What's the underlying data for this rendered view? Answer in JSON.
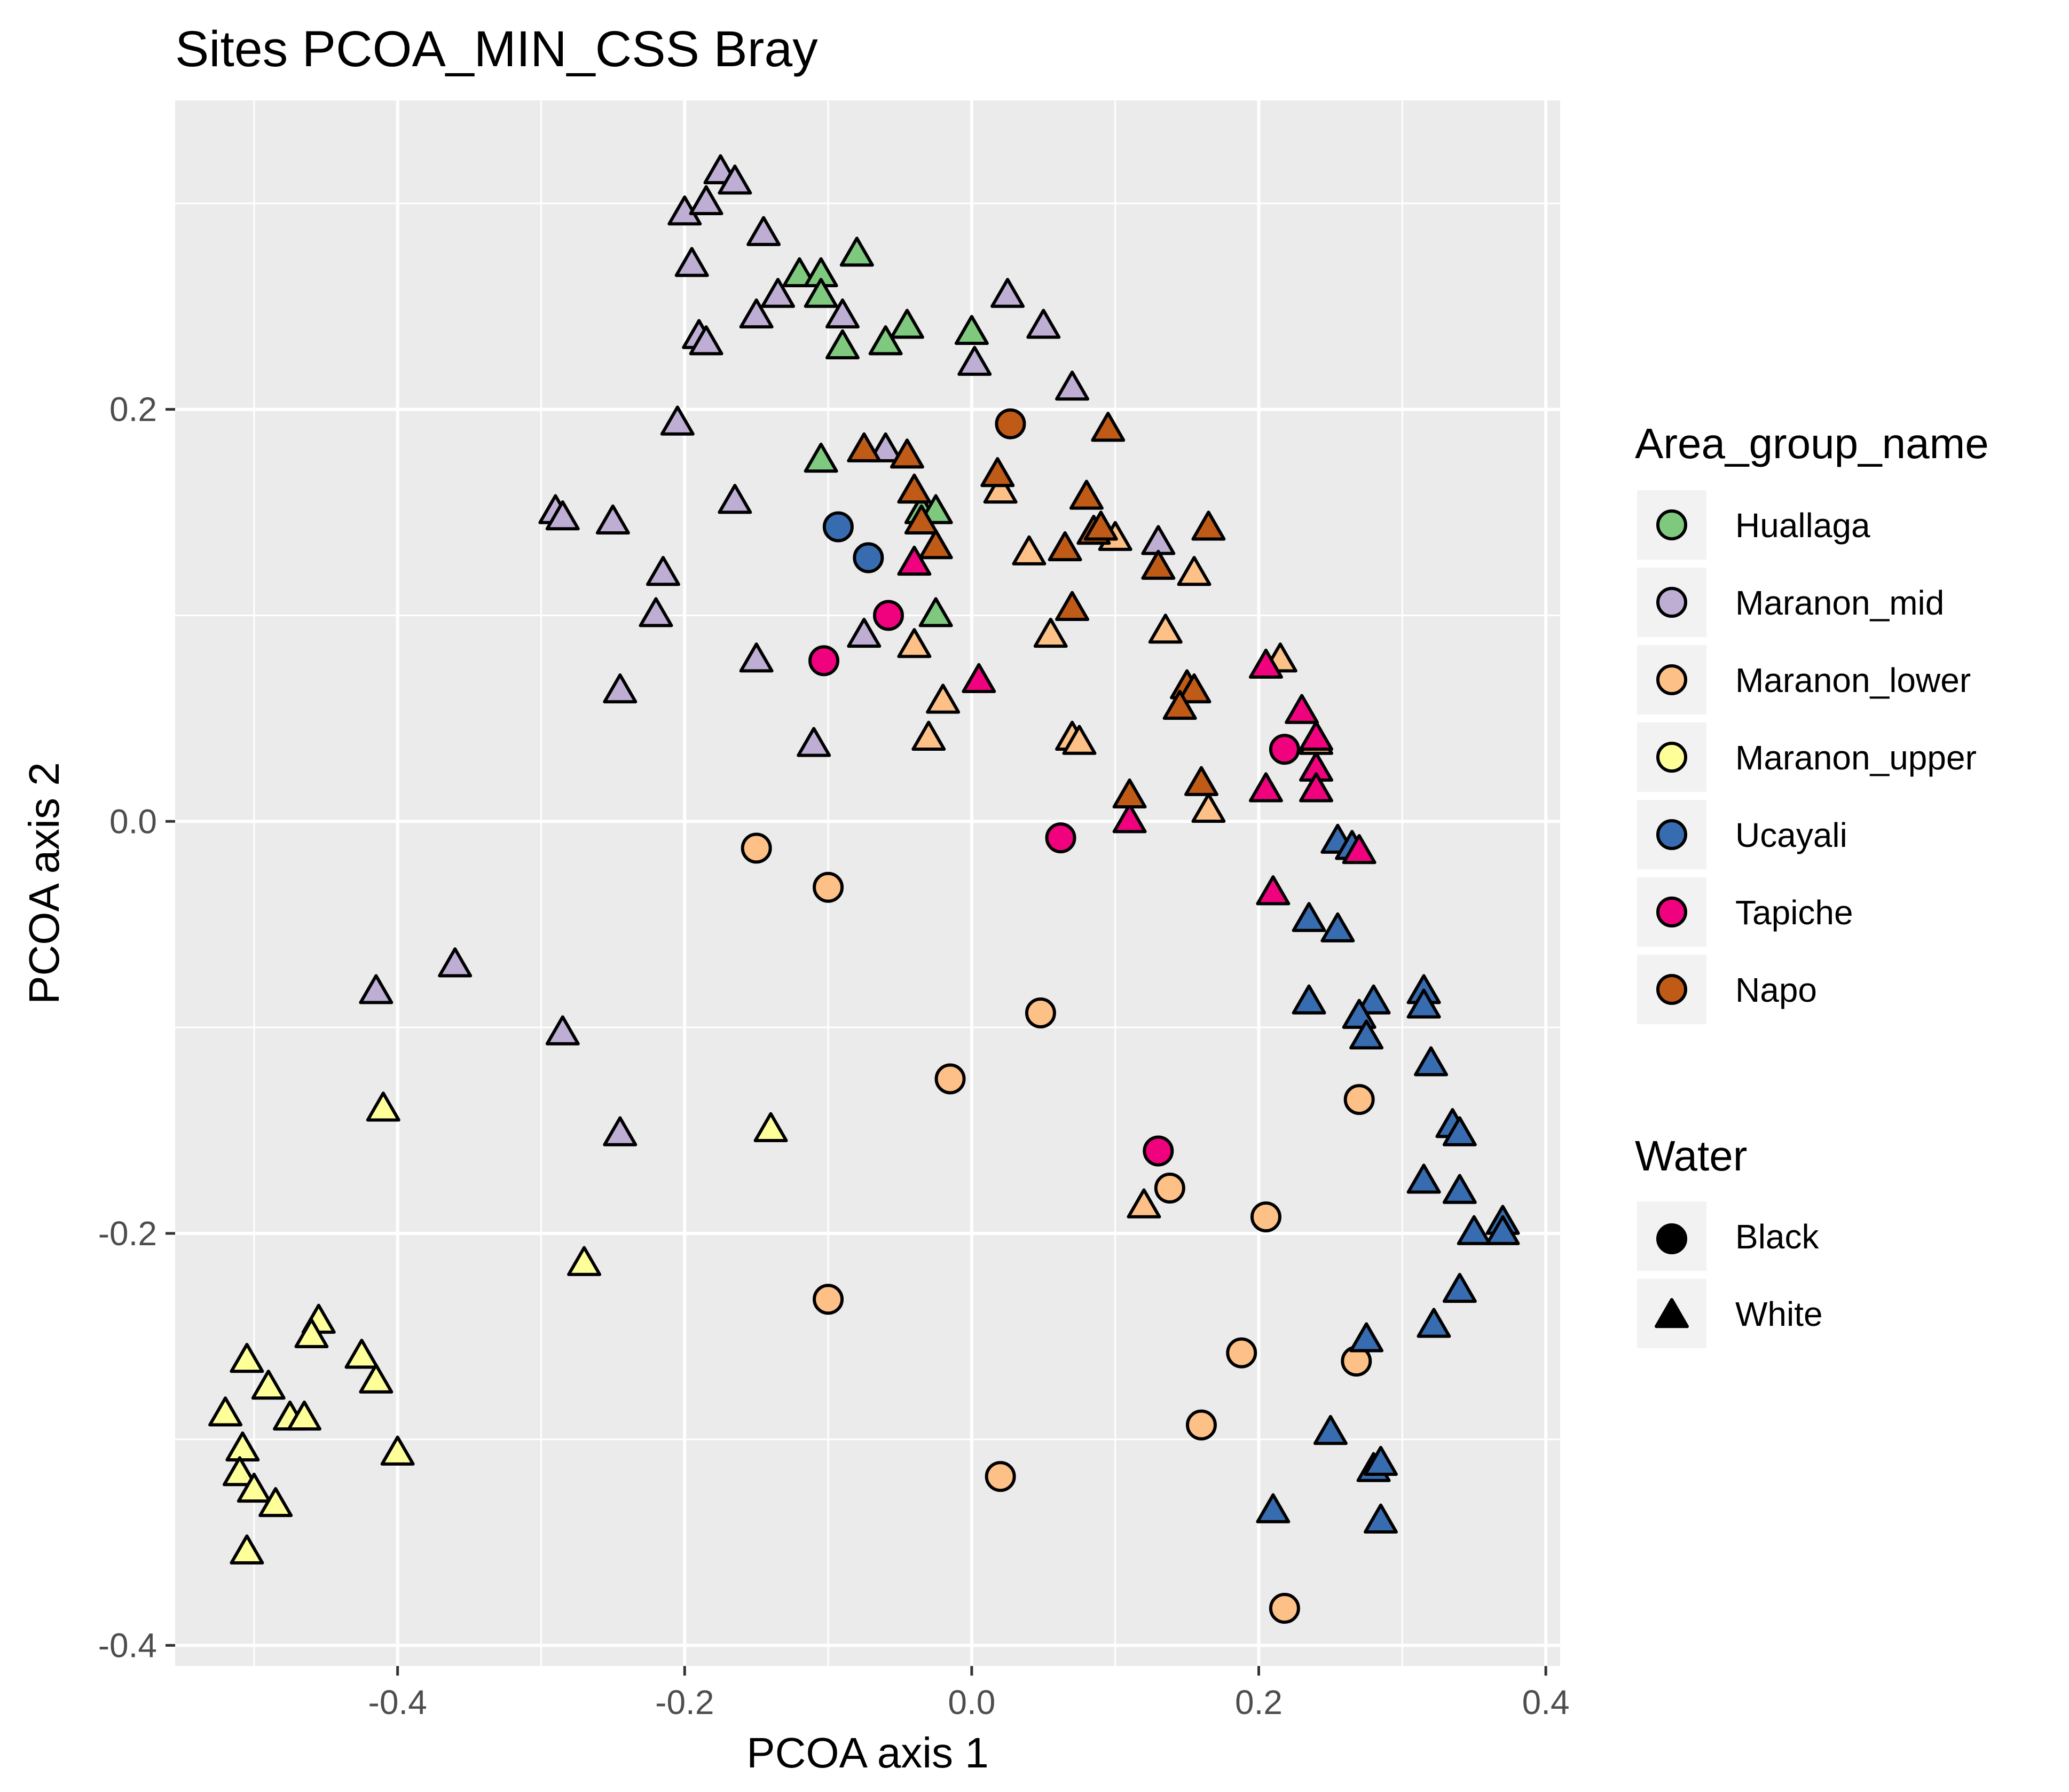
{
  "chart_data": {
    "type": "scatter",
    "title": "Sites PCOA_MIN_CSS Bray",
    "xlabel": "PCOA axis 1",
    "ylabel": "PCOA axis 2",
    "xlim": [
      -0.555,
      0.41
    ],
    "ylim": [
      -0.41,
      0.35
    ],
    "x_ticks": [
      -0.4,
      -0.2,
      0.0,
      0.2,
      0.4
    ],
    "y_ticks": [
      -0.4,
      -0.2,
      0.0,
      0.2
    ],
    "x_tick_labels": [
      "-0.4",
      "-0.2",
      "0.0",
      "0.2",
      "0.4"
    ],
    "y_tick_labels": [
      "-0.4",
      "-0.2",
      "0.0",
      "0.2"
    ],
    "grid": true,
    "legend_position": "right",
    "legends": [
      {
        "title": "Area_group_name",
        "items": [
          {
            "label": "Huallaga",
            "color": "#7fc97f"
          },
          {
            "label": "Maranon_mid",
            "color": "#beaed4"
          },
          {
            "label": "Maranon_lower",
            "color": "#fdc086"
          },
          {
            "label": "Maranon_upper",
            "color": "#ffff99"
          },
          {
            "label": "Ucayali",
            "color": "#386cb0"
          },
          {
            "label": "Tapiche",
            "color": "#f0027f"
          },
          {
            "label": "Napo",
            "color": "#bf5b17"
          }
        ]
      },
      {
        "title": "Water",
        "items": [
          {
            "label": "Black",
            "shape": "circle"
          },
          {
            "label": "White",
            "shape": "triangle"
          }
        ]
      }
    ],
    "series": [
      {
        "name": "Huallaga",
        "color": "#7fc97f",
        "points": [
          {
            "x": -0.12,
            "y": 0.265,
            "shape": "triangle"
          },
          {
            "x": -0.105,
            "y": 0.265,
            "shape": "triangle"
          },
          {
            "x": -0.08,
            "y": 0.275,
            "shape": "triangle"
          },
          {
            "x": -0.105,
            "y": 0.255,
            "shape": "triangle"
          },
          {
            "x": -0.09,
            "y": 0.23,
            "shape": "triangle"
          },
          {
            "x": -0.06,
            "y": 0.232,
            "shape": "triangle"
          },
          {
            "x": -0.045,
            "y": 0.24,
            "shape": "triangle"
          },
          {
            "x": 0.0,
            "y": 0.237,
            "shape": "triangle"
          },
          {
            "x": -0.105,
            "y": 0.175,
            "shape": "triangle"
          },
          {
            "x": -0.035,
            "y": 0.15,
            "shape": "triangle"
          },
          {
            "x": -0.025,
            "y": 0.15,
            "shape": "triangle"
          },
          {
            "x": -0.025,
            "y": 0.1,
            "shape": "triangle"
          }
        ]
      },
      {
        "name": "Maranon_mid",
        "color": "#beaed4",
        "points": [
          {
            "x": -0.175,
            "y": 0.315,
            "shape": "triangle"
          },
          {
            "x": -0.165,
            "y": 0.31,
            "shape": "triangle"
          },
          {
            "x": -0.2,
            "y": 0.295,
            "shape": "triangle"
          },
          {
            "x": -0.185,
            "y": 0.3,
            "shape": "triangle"
          },
          {
            "x": -0.145,
            "y": 0.285,
            "shape": "triangle"
          },
          {
            "x": -0.195,
            "y": 0.27,
            "shape": "triangle"
          },
          {
            "x": -0.135,
            "y": 0.255,
            "shape": "triangle"
          },
          {
            "x": -0.15,
            "y": 0.245,
            "shape": "triangle"
          },
          {
            "x": -0.09,
            "y": 0.245,
            "shape": "triangle"
          },
          {
            "x": -0.19,
            "y": 0.235,
            "shape": "triangle"
          },
          {
            "x": -0.185,
            "y": 0.232,
            "shape": "triangle"
          },
          {
            "x": 0.025,
            "y": 0.255,
            "shape": "triangle"
          },
          {
            "x": 0.05,
            "y": 0.24,
            "shape": "triangle"
          },
          {
            "x": 0.002,
            "y": 0.222,
            "shape": "triangle"
          },
          {
            "x": 0.07,
            "y": 0.21,
            "shape": "triangle"
          },
          {
            "x": -0.205,
            "y": 0.193,
            "shape": "triangle"
          },
          {
            "x": -0.06,
            "y": 0.18,
            "shape": "triangle"
          },
          {
            "x": -0.165,
            "y": 0.155,
            "shape": "triangle"
          },
          {
            "x": -0.29,
            "y": 0.15,
            "shape": "triangle"
          },
          {
            "x": -0.285,
            "y": 0.147,
            "shape": "triangle"
          },
          {
            "x": -0.25,
            "y": 0.145,
            "shape": "triangle"
          },
          {
            "x": 0.13,
            "y": 0.135,
            "shape": "triangle"
          },
          {
            "x": -0.215,
            "y": 0.12,
            "shape": "triangle"
          },
          {
            "x": -0.22,
            "y": 0.1,
            "shape": "triangle"
          },
          {
            "x": -0.075,
            "y": 0.09,
            "shape": "triangle"
          },
          {
            "x": -0.15,
            "y": 0.078,
            "shape": "triangle"
          },
          {
            "x": -0.245,
            "y": 0.063,
            "shape": "triangle"
          },
          {
            "x": -0.11,
            "y": 0.037,
            "shape": "triangle"
          },
          {
            "x": -0.36,
            "y": -0.07,
            "shape": "triangle"
          },
          {
            "x": -0.415,
            "y": -0.083,
            "shape": "triangle"
          },
          {
            "x": -0.285,
            "y": -0.103,
            "shape": "triangle"
          },
          {
            "x": -0.245,
            "y": -0.152,
            "shape": "triangle"
          }
        ]
      },
      {
        "name": "Maranon_lower",
        "color": "#fdc086",
        "points": [
          {
            "x": 0.02,
            "y": 0.16,
            "shape": "triangle"
          },
          {
            "x": 0.04,
            "y": 0.13,
            "shape": "triangle"
          },
          {
            "x": 0.1,
            "y": 0.137,
            "shape": "triangle"
          },
          {
            "x": 0.155,
            "y": 0.12,
            "shape": "triangle"
          },
          {
            "x": 0.135,
            "y": 0.092,
            "shape": "triangle"
          },
          {
            "x": 0.055,
            "y": 0.09,
            "shape": "triangle"
          },
          {
            "x": -0.04,
            "y": 0.085,
            "shape": "triangle"
          },
          {
            "x": 0.215,
            "y": 0.078,
            "shape": "triangle"
          },
          {
            "x": -0.02,
            "y": 0.058,
            "shape": "triangle"
          },
          {
            "x": -0.03,
            "y": 0.04,
            "shape": "triangle"
          },
          {
            "x": 0.07,
            "y": 0.04,
            "shape": "triangle"
          },
          {
            "x": 0.075,
            "y": 0.038,
            "shape": "triangle"
          },
          {
            "x": 0.24,
            "y": 0.038,
            "shape": "triangle"
          },
          {
            "x": 0.165,
            "y": 0.005,
            "shape": "triangle"
          },
          {
            "x": 0.12,
            "y": -0.187,
            "shape": "triangle"
          },
          {
            "x": -0.15,
            "y": -0.013,
            "shape": "circle"
          },
          {
            "x": -0.1,
            "y": -0.032,
            "shape": "circle"
          },
          {
            "x": 0.048,
            "y": -0.093,
            "shape": "circle"
          },
          {
            "x": -0.015,
            "y": -0.125,
            "shape": "circle"
          },
          {
            "x": 0.27,
            "y": -0.135,
            "shape": "circle"
          },
          {
            "x": 0.138,
            "y": -0.178,
            "shape": "circle"
          },
          {
            "x": 0.205,
            "y": -0.192,
            "shape": "circle"
          },
          {
            "x": -0.1,
            "y": -0.232,
            "shape": "circle"
          },
          {
            "x": 0.188,
            "y": -0.258,
            "shape": "circle"
          },
          {
            "x": 0.268,
            "y": -0.262,
            "shape": "circle"
          },
          {
            "x": 0.16,
            "y": -0.293,
            "shape": "circle"
          },
          {
            "x": 0.02,
            "y": -0.318,
            "shape": "circle"
          },
          {
            "x": 0.218,
            "y": -0.382,
            "shape": "circle"
          }
        ]
      },
      {
        "name": "Maranon_upper",
        "color": "#ffff99",
        "points": [
          {
            "x": -0.41,
            "y": -0.14,
            "shape": "triangle"
          },
          {
            "x": -0.14,
            "y": -0.15,
            "shape": "triangle"
          },
          {
            "x": -0.27,
            "y": -0.215,
            "shape": "triangle"
          },
          {
            "x": -0.455,
            "y": -0.243,
            "shape": "triangle"
          },
          {
            "x": -0.46,
            "y": -0.25,
            "shape": "triangle"
          },
          {
            "x": -0.425,
            "y": -0.26,
            "shape": "triangle"
          },
          {
            "x": -0.505,
            "y": -0.262,
            "shape": "triangle"
          },
          {
            "x": -0.415,
            "y": -0.272,
            "shape": "triangle"
          },
          {
            "x": -0.49,
            "y": -0.275,
            "shape": "triangle"
          },
          {
            "x": -0.52,
            "y": -0.288,
            "shape": "triangle"
          },
          {
            "x": -0.475,
            "y": -0.29,
            "shape": "triangle"
          },
          {
            "x": -0.465,
            "y": -0.29,
            "shape": "triangle"
          },
          {
            "x": -0.4,
            "y": -0.307,
            "shape": "triangle"
          },
          {
            "x": -0.508,
            "y": -0.305,
            "shape": "triangle"
          },
          {
            "x": -0.51,
            "y": -0.317,
            "shape": "triangle"
          },
          {
            "x": -0.5,
            "y": -0.325,
            "shape": "triangle"
          },
          {
            "x": -0.485,
            "y": -0.332,
            "shape": "triangle"
          },
          {
            "x": -0.505,
            "y": -0.355,
            "shape": "triangle"
          }
        ]
      },
      {
        "name": "Ucayali",
        "color": "#386cb0",
        "points": [
          {
            "x": 0.255,
            "y": -0.01,
            "shape": "triangle"
          },
          {
            "x": 0.265,
            "y": -0.013,
            "shape": "triangle"
          },
          {
            "x": 0.235,
            "y": -0.048,
            "shape": "triangle"
          },
          {
            "x": 0.255,
            "y": -0.053,
            "shape": "triangle"
          },
          {
            "x": 0.235,
            "y": -0.088,
            "shape": "triangle"
          },
          {
            "x": 0.28,
            "y": -0.088,
            "shape": "triangle"
          },
          {
            "x": 0.315,
            "y": -0.083,
            "shape": "triangle"
          },
          {
            "x": 0.315,
            "y": -0.09,
            "shape": "triangle"
          },
          {
            "x": 0.27,
            "y": -0.095,
            "shape": "triangle"
          },
          {
            "x": 0.275,
            "y": -0.105,
            "shape": "triangle"
          },
          {
            "x": 0.32,
            "y": -0.118,
            "shape": "triangle"
          },
          {
            "x": 0.335,
            "y": -0.148,
            "shape": "triangle"
          },
          {
            "x": 0.34,
            "y": -0.152,
            "shape": "triangle"
          },
          {
            "x": 0.315,
            "y": -0.175,
            "shape": "triangle"
          },
          {
            "x": 0.34,
            "y": -0.18,
            "shape": "triangle"
          },
          {
            "x": 0.35,
            "y": -0.2,
            "shape": "triangle"
          },
          {
            "x": 0.37,
            "y": -0.195,
            "shape": "triangle"
          },
          {
            "x": 0.37,
            "y": -0.2,
            "shape": "triangle"
          },
          {
            "x": 0.34,
            "y": -0.228,
            "shape": "triangle"
          },
          {
            "x": 0.322,
            "y": -0.245,
            "shape": "triangle"
          },
          {
            "x": 0.275,
            "y": -0.252,
            "shape": "triangle"
          },
          {
            "x": 0.25,
            "y": -0.297,
            "shape": "triangle"
          },
          {
            "x": 0.28,
            "y": -0.315,
            "shape": "triangle"
          },
          {
            "x": 0.285,
            "y": -0.312,
            "shape": "triangle"
          },
          {
            "x": 0.21,
            "y": -0.335,
            "shape": "triangle"
          },
          {
            "x": 0.285,
            "y": -0.34,
            "shape": "triangle"
          },
          {
            "x": -0.093,
            "y": 0.143,
            "shape": "circle"
          },
          {
            "x": -0.072,
            "y": 0.128,
            "shape": "circle"
          }
        ]
      },
      {
        "name": "Tapiche",
        "color": "#f0027f",
        "points": [
          {
            "x": -0.04,
            "y": 0.125,
            "shape": "triangle"
          },
          {
            "x": 0.005,
            "y": 0.068,
            "shape": "triangle"
          },
          {
            "x": 0.205,
            "y": 0.075,
            "shape": "triangle"
          },
          {
            "x": 0.23,
            "y": 0.053,
            "shape": "triangle"
          },
          {
            "x": 0.24,
            "y": 0.04,
            "shape": "triangle"
          },
          {
            "x": 0.24,
            "y": 0.025,
            "shape": "triangle"
          },
          {
            "x": 0.205,
            "y": 0.015,
            "shape": "triangle"
          },
          {
            "x": 0.24,
            "y": 0.015,
            "shape": "triangle"
          },
          {
            "x": 0.11,
            "y": 0.0,
            "shape": "triangle"
          },
          {
            "x": 0.27,
            "y": -0.015,
            "shape": "triangle"
          },
          {
            "x": 0.21,
            "y": -0.035,
            "shape": "triangle"
          },
          {
            "x": -0.058,
            "y": 0.1,
            "shape": "circle"
          },
          {
            "x": -0.103,
            "y": 0.078,
            "shape": "circle"
          },
          {
            "x": 0.218,
            "y": 0.035,
            "shape": "circle"
          },
          {
            "x": 0.062,
            "y": -0.008,
            "shape": "circle"
          },
          {
            "x": 0.13,
            "y": -0.16,
            "shape": "circle"
          }
        ]
      },
      {
        "name": "Napo",
        "color": "#bf5b17",
        "points": [
          {
            "x": 0.095,
            "y": 0.19,
            "shape": "triangle"
          },
          {
            "x": -0.075,
            "y": 0.18,
            "shape": "triangle"
          },
          {
            "x": -0.045,
            "y": 0.177,
            "shape": "triangle"
          },
          {
            "x": 0.018,
            "y": 0.168,
            "shape": "triangle"
          },
          {
            "x": -0.04,
            "y": 0.16,
            "shape": "triangle"
          },
          {
            "x": 0.08,
            "y": 0.157,
            "shape": "triangle"
          },
          {
            "x": -0.035,
            "y": 0.145,
            "shape": "triangle"
          },
          {
            "x": 0.165,
            "y": 0.142,
            "shape": "triangle"
          },
          {
            "x": 0.085,
            "y": 0.14,
            "shape": "triangle"
          },
          {
            "x": 0.09,
            "y": 0.142,
            "shape": "triangle"
          },
          {
            "x": -0.025,
            "y": 0.133,
            "shape": "triangle"
          },
          {
            "x": 0.065,
            "y": 0.132,
            "shape": "triangle"
          },
          {
            "x": 0.13,
            "y": 0.123,
            "shape": "triangle"
          },
          {
            "x": 0.07,
            "y": 0.103,
            "shape": "triangle"
          },
          {
            "x": 0.15,
            "y": 0.065,
            "shape": "triangle"
          },
          {
            "x": 0.155,
            "y": 0.063,
            "shape": "triangle"
          },
          {
            "x": 0.145,
            "y": 0.055,
            "shape": "triangle"
          },
          {
            "x": 0.16,
            "y": 0.018,
            "shape": "triangle"
          },
          {
            "x": 0.11,
            "y": 0.012,
            "shape": "triangle"
          },
          {
            "x": 0.027,
            "y": 0.193,
            "shape": "circle"
          }
        ]
      }
    ]
  }
}
